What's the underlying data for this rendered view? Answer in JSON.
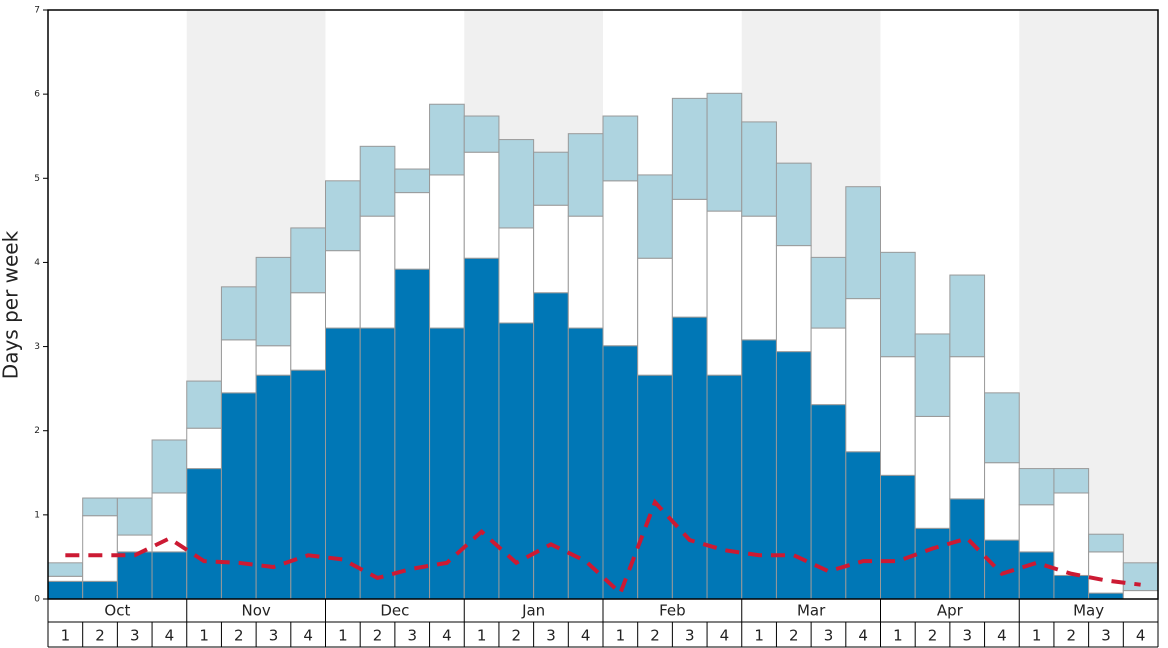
{
  "chart_data": {
    "type": "stacked_bar",
    "y_label": "Days per week",
    "groups": [
      "Oct",
      "Nov",
      "Dec",
      "Jan",
      "Feb",
      "Mar",
      "Apr",
      "May"
    ],
    "categories": [
      "1",
      "2",
      "3",
      "4",
      "1",
      "2",
      "3",
      "4",
      "1",
      "2",
      "3",
      "4",
      "1",
      "2",
      "3",
      "4",
      "1",
      "2",
      "3",
      "4",
      "1",
      "2",
      "3",
      "4",
      "1",
      "2",
      "3",
      "4",
      "1",
      "2",
      "3",
      "4"
    ],
    "ylim": [
      0,
      7
    ],
    "yticks": [
      0,
      1,
      2,
      3,
      4,
      5,
      6,
      7
    ],
    "series": [
      {
        "color": "#0077b6",
        "values": [
          0.21,
          0.21,
          0.56,
          0.56,
          1.55,
          2.45,
          2.66,
          2.72,
          3.22,
          3.22,
          3.92,
          3.22,
          4.05,
          3.28,
          3.64,
          3.22,
          3.01,
          2.66,
          3.35,
          2.66,
          3.08,
          2.94,
          2.31,
          1.75,
          1.47,
          0.84,
          1.19,
          0.7,
          0.56,
          0.28,
          0.07,
          0
        ]
      },
      {
        "color": "#ffffff",
        "values": [
          0.06,
          0.78,
          0.2,
          0.7,
          0.48,
          0.63,
          0.35,
          0.92,
          0.92,
          1.33,
          0.91,
          1.82,
          1.26,
          1.13,
          1.04,
          1.33,
          1.96,
          1.39,
          1.4,
          1.95,
          1.47,
          1.26,
          0.91,
          1.82,
          1.41,
          1.33,
          1.69,
          0.92,
          0.56,
          0.98,
          0.49,
          0.1
        ]
      },
      {
        "color": "#aed4e0",
        "values": [
          0.16,
          0.21,
          0.44,
          0.63,
          0.56,
          0.63,
          1.05,
          0.77,
          0.83,
          0.83,
          0.28,
          0.84,
          0.43,
          1.05,
          0.63,
          0.98,
          0.77,
          0.99,
          1.2,
          1.4,
          1.12,
          0.98,
          0.84,
          1.33,
          1.24,
          0.98,
          0.97,
          0.83,
          0.43,
          0.29,
          0.21,
          0.33
        ]
      }
    ],
    "line": {
      "color": "#cc1a33",
      "values": [
        0.52,
        0.52,
        0.52,
        0.72,
        0.45,
        0.43,
        0.38,
        0.52,
        0.47,
        0.25,
        0.36,
        0.43,
        0.8,
        0.43,
        0.65,
        0.45,
        0.07,
        1.15,
        0.7,
        0.58,
        0.52,
        0.52,
        0.33,
        0.45,
        0.45,
        0.6,
        0.72,
        0.3,
        0.43,
        0.3,
        0.22,
        0.17
      ]
    }
  }
}
